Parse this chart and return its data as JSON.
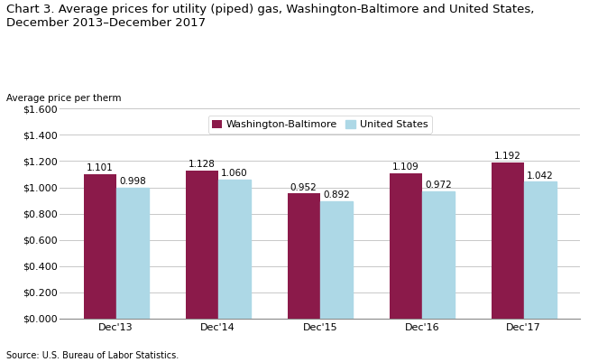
{
  "title": "Chart 3. Average prices for utility (piped) gas, Washington-Baltimore and United States,\nDecember 2013–December 2017",
  "ylabel": "Average price per therm",
  "categories": [
    "Dec'13",
    "Dec'14",
    "Dec'15",
    "Dec'16",
    "Dec'17"
  ],
  "washington_baltimore": [
    1.101,
    1.128,
    0.952,
    1.109,
    1.192
  ],
  "united_states": [
    0.998,
    1.06,
    0.892,
    0.972,
    1.042
  ],
  "wb_color": "#8B1A4A",
  "us_color": "#ADD8E6",
  "wb_label": "Washington-Baltimore",
  "us_label": "United States",
  "ylim": [
    0,
    1.6
  ],
  "ytick_vals": [
    0.0,
    0.2,
    0.4,
    0.6,
    0.8,
    1.0,
    1.2,
    1.4,
    1.6
  ],
  "ytick_labels": [
    "$0.000",
    "$0.200",
    "$0.400",
    "$0.600",
    "$0.800",
    "$1.000",
    "$1.200",
    "$1.400",
    "$1.600"
  ],
  "bar_width": 0.32,
  "source_text": "Source: U.S. Bureau of Labor Statistics.",
  "title_fontsize": 9.5,
  "axis_label_fontsize": 7.5,
  "tick_fontsize": 8,
  "annotation_fontsize": 7.5,
  "legend_fontsize": 8,
  "bg_color": "#FFFFFF",
  "grid_color": "#C8C8C8"
}
